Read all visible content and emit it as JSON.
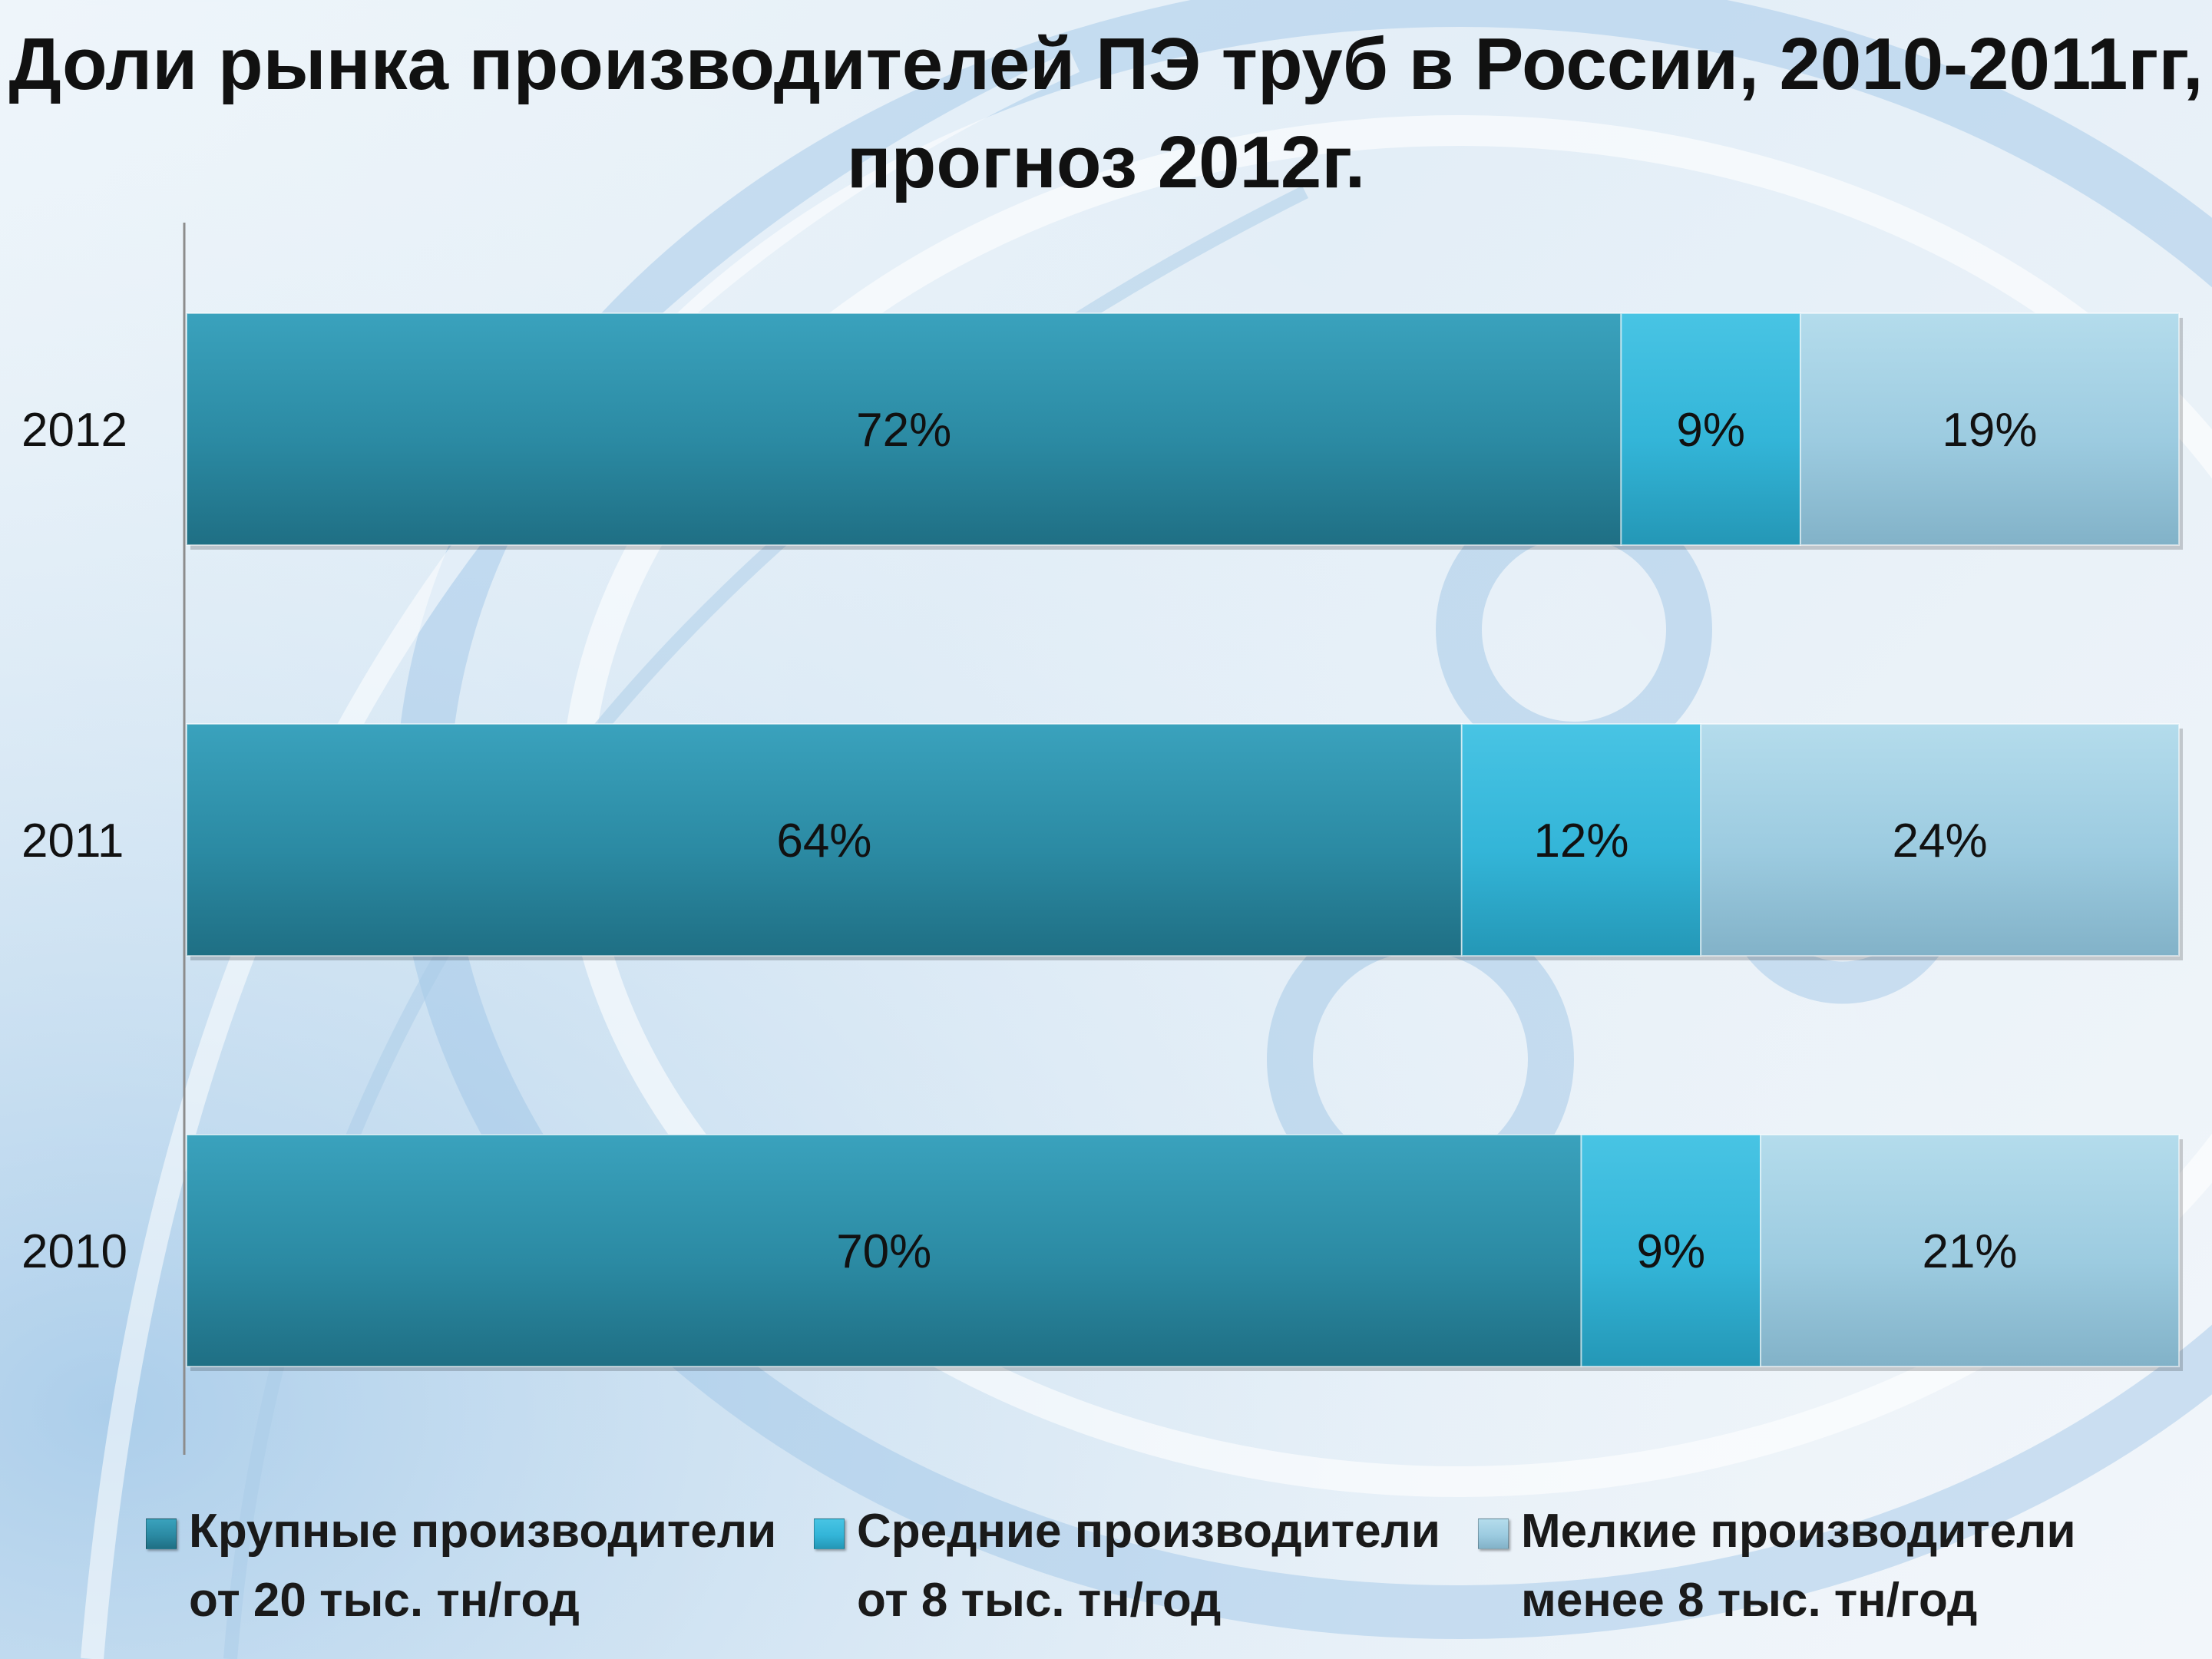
{
  "chart_data": {
    "type": "bar",
    "orientation": "horizontal",
    "stacked": true,
    "percent": true,
    "title_lines": [
      "Доли рынка производителей ПЭ труб в России, 2010-2011гг,",
      "прогноз 2012г."
    ],
    "categories": [
      "2012",
      "2011",
      "2010"
    ],
    "series": [
      {
        "name_lines": [
          "Крупные производители",
          "от 20 тыс. тн/год"
        ],
        "color": "#2b8aa3",
        "color_light": "#3aa2bd",
        "color_dark": "#1f6f84",
        "values": [
          72,
          64,
          70
        ],
        "labels": [
          "72%",
          "64%",
          "70%"
        ]
      },
      {
        "name_lines": [
          "Средние производители",
          "от 8 тыс. тн/год"
        ],
        "color": "#33b5d8",
        "color_light": "#48c4e4",
        "color_dark": "#2497b6",
        "values": [
          9,
          12,
          9
        ],
        "labels": [
          "9%",
          "12%",
          "9%"
        ]
      },
      {
        "name_lines": [
          "Мелкие производители",
          "менее 8 тыс. тн/год"
        ],
        "color": "#9ccbe0",
        "color_light": "#b4dcec",
        "color_dark": "#82b2c8",
        "values": [
          19,
          24,
          21
        ],
        "labels": [
          "19%",
          "24%",
          "21%"
        ]
      }
    ],
    "xlim": [
      0,
      100
    ],
    "grid": false,
    "legend_position": "bottom"
  }
}
